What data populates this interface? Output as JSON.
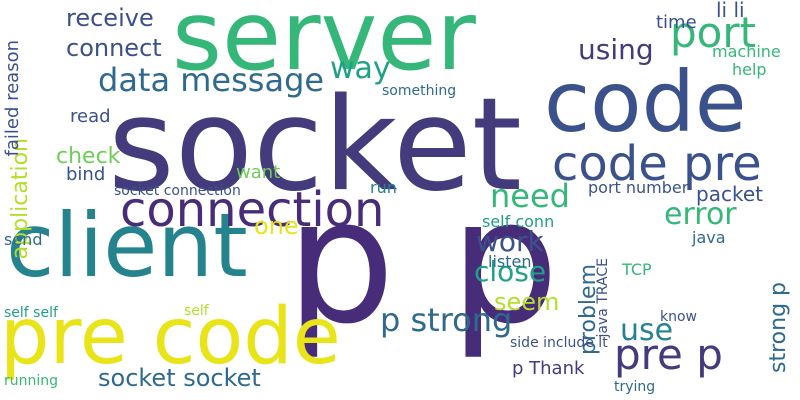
{
  "colors": {
    "navy": "#433b7c",
    "indigo": "#3b518b",
    "blue": "#2f6a8e",
    "teal": "#25838e",
    "green": "#1fa187",
    "emerald": "#35b779",
    "lime": "#6ece58",
    "chartreuse": "#b5de2b",
    "yellow": "#e8e419",
    "purple": "#472c7a"
  },
  "words": [
    "server",
    "socket",
    "code",
    "client",
    "p p",
    "pre code",
    "code pre",
    "connection",
    "data message",
    "receive",
    "connect",
    "port",
    "using",
    "way",
    "application",
    "error",
    "p strong",
    "pre p",
    "socket socket",
    "close",
    "need",
    "work",
    "failed reason",
    "check",
    "one",
    "problem",
    "strong p",
    "use",
    "packet",
    "li li",
    "time",
    "machine",
    "help",
    "read",
    "want",
    "bind",
    "run",
    "seem",
    "listen",
    "TCP",
    "java",
    "send",
    "self conn",
    "port number",
    "socket connection",
    "side include lt",
    "p Thank",
    "running",
    "self self",
    "know",
    "something",
    "java TRACE",
    "trying",
    "self"
  ]
}
